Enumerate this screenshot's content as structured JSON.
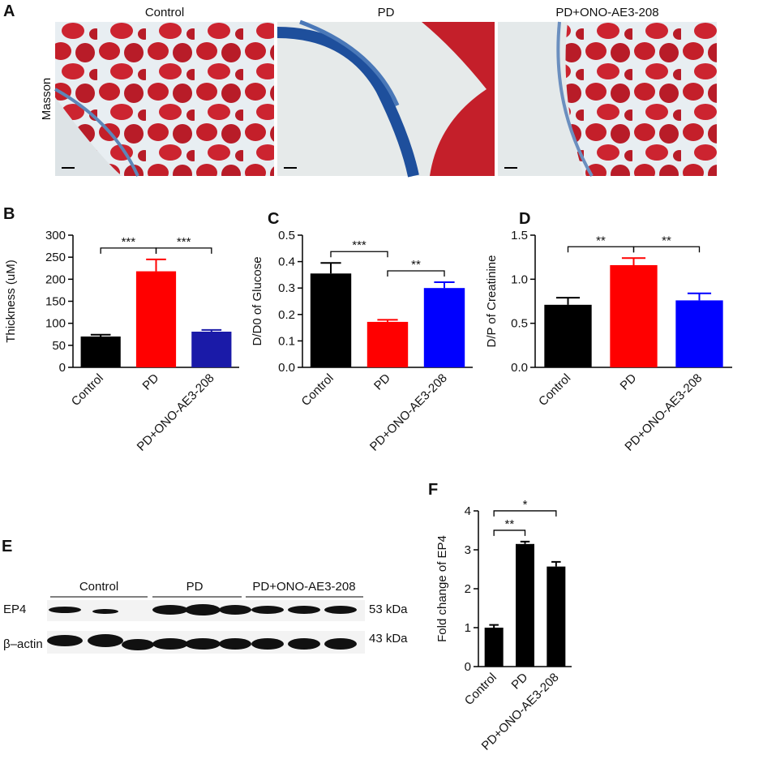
{
  "panel_a": {
    "label": "A",
    "stain": "Masson",
    "titles": [
      "Control",
      "PD",
      "PD+ONO-AE3-208"
    ]
  },
  "chart_data": [
    {
      "type": "bar",
      "panel": "B",
      "ylabel": "Thickness (uM)",
      "categories": [
        "Control",
        "PD",
        "PD+ONO-AE3-208"
      ],
      "values": [
        70,
        218,
        81
      ],
      "errors": [
        4,
        27,
        4
      ],
      "colors": [
        "#000000",
        "#ff0000",
        "#1a1aa8"
      ],
      "ylim": [
        0,
        300
      ],
      "yticks": [
        0,
        50,
        100,
        150,
        200,
        250,
        300
      ],
      "significance": [
        {
          "pair": [
            "Control",
            "PD"
          ],
          "label": "***"
        },
        {
          "pair": [
            "PD",
            "PD+ONO-AE3-208"
          ],
          "label": "***"
        }
      ]
    },
    {
      "type": "bar",
      "panel": "C",
      "ylabel": "D/D0 of Glucose",
      "categories": [
        "Control",
        "PD",
        "PD+ONO-AE3-208"
      ],
      "values": [
        0.355,
        0.172,
        0.3
      ],
      "errors": [
        0.04,
        0.008,
        0.022
      ],
      "colors": [
        "#000000",
        "#ff0000",
        "#0000ff"
      ],
      "ylim": [
        0,
        0.5
      ],
      "yticks": [
        {
          "value": 0,
          "label": "0.0"
        },
        0.1,
        0.2,
        0.3,
        0.4,
        0.5
      ],
      "significance": [
        {
          "pair": [
            "Control",
            "PD"
          ],
          "label": "***"
        },
        {
          "pair": [
            "PD",
            "PD+ONO-AE3-208"
          ],
          "label": "**"
        }
      ]
    },
    {
      "type": "bar",
      "panel": "D",
      "ylabel": "D/P of Creatinine",
      "categories": [
        "Control",
        "PD",
        "PD+ONO-AE3-208"
      ],
      "values": [
        0.71,
        1.16,
        0.76
      ],
      "errors": [
        0.08,
        0.08,
        0.08
      ],
      "colors": [
        "#000000",
        "#ff0000",
        "#0000ff"
      ],
      "ylim": [
        0,
        1.5
      ],
      "yticks": [
        {
          "value": 0,
          "label": "0.0"
        },
        0.5,
        {
          "value": 1,
          "label": "1.0"
        },
        1.5
      ],
      "significance": [
        {
          "pair": [
            "Control",
            "PD"
          ],
          "label": "**"
        },
        {
          "pair": [
            "PD",
            "PD+ONO-AE3-208"
          ],
          "label": "**"
        }
      ]
    },
    {
      "type": "bar",
      "panel": "F",
      "ylabel": "Fold change of EP4",
      "categories": [
        "Control",
        "PD",
        "PD+ONO-AE3-208"
      ],
      "values": [
        1.0,
        3.15,
        2.57
      ],
      "errors": [
        0.07,
        0.06,
        0.12
      ],
      "colors": [
        "#000000",
        "#000000",
        "#000000"
      ],
      "ylim": [
        0,
        4
      ],
      "yticks": [
        0,
        1,
        2,
        3,
        4
      ],
      "significance": [
        {
          "pair": [
            "Control",
            "PD"
          ],
          "label": "**"
        },
        {
          "pair": [
            "Control",
            "PD+ONO-AE3-208"
          ],
          "label": "*"
        }
      ]
    }
  ],
  "panel_e": {
    "label": "E",
    "groups": [
      "Control",
      "PD",
      "PD+ONO-AE3-208"
    ],
    "rows": [
      "EP4",
      "β–actin"
    ],
    "sizes": [
      "53 kDa",
      "43 kDa"
    ]
  }
}
